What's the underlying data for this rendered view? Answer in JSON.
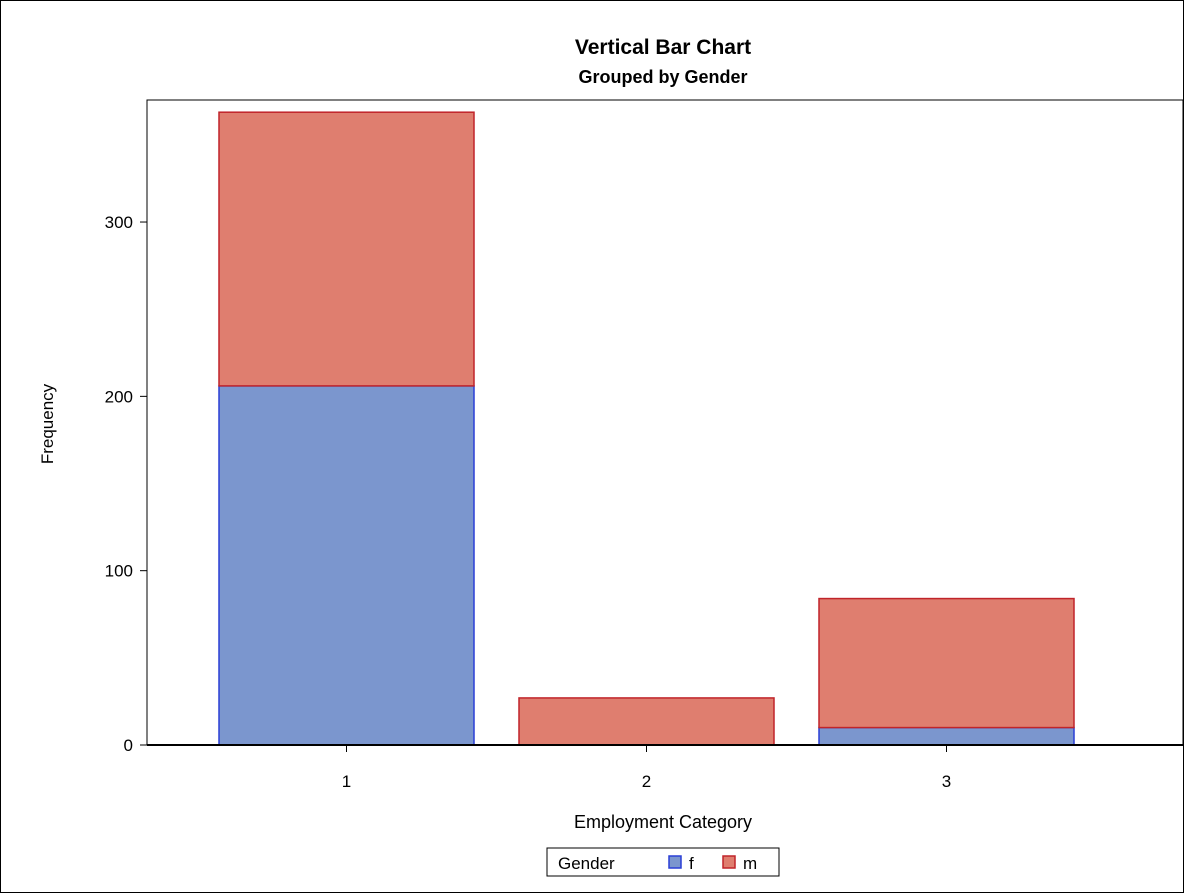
{
  "chart_data": {
    "type": "bar",
    "stacked": true,
    "title": "Vertical Bar Chart",
    "subtitle": "Grouped by Gender",
    "xlabel": "Employment Category",
    "ylabel": "Frequency",
    "categories": [
      "1",
      "2",
      "3"
    ],
    "series": [
      {
        "name": "f",
        "values": [
          206,
          0,
          10
        ]
      },
      {
        "name": "m",
        "values": [
          157,
          27,
          74
        ]
      }
    ],
    "ylim": [
      0,
      370
    ],
    "yticks": [
      0,
      100,
      200,
      300
    ],
    "grid": false,
    "legend": {
      "title": "Gender",
      "position": "bottom-center",
      "entries": [
        "f",
        "m"
      ]
    },
    "colors": {
      "f_fill": "#7b96ce",
      "f_edge": "#2a3fd6",
      "m_fill": "#df7e6f",
      "m_edge": "#c0242a"
    }
  }
}
